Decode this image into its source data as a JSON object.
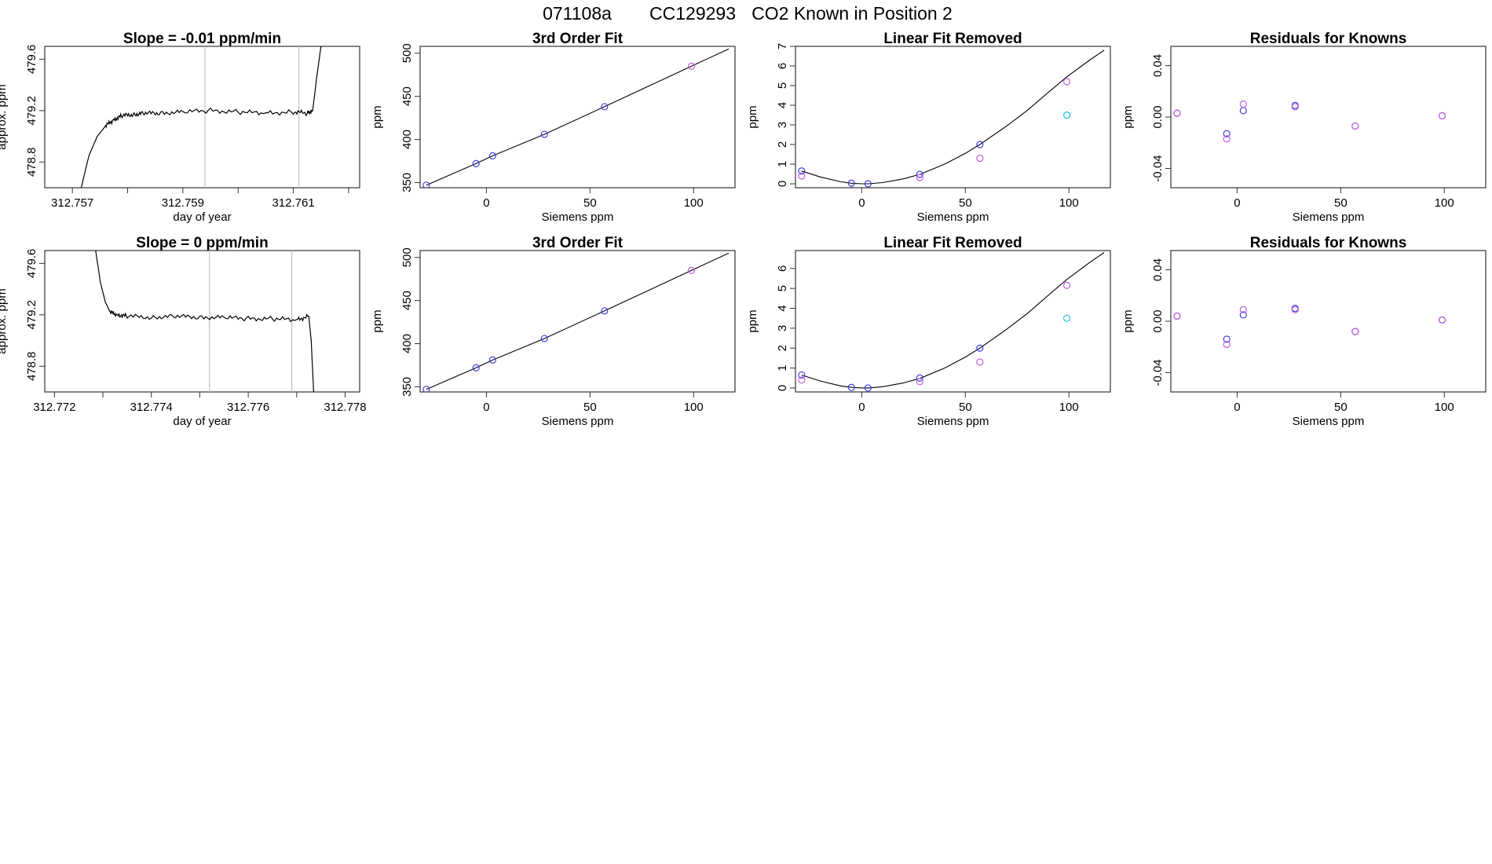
{
  "figure": {
    "run_id": "071108a",
    "cylinder_id": "CC129293",
    "title_text": "CO2 Known in Position  2"
  },
  "colors": {
    "known_points": "#4040e0",
    "alt_points": "#c060e0",
    "outlier_point": "#20c0e0",
    "fit_line": "#000000",
    "marker_lines": "#c0c0c0"
  },
  "chart_data": [
    {
      "type": "line",
      "title": "Slope =  -0.01  ppm/min",
      "xlabel": "day of year",
      "ylabel": "approx. ppm",
      "xlim": [
        312.7565,
        312.7622
      ],
      "ylim": [
        478.6,
        479.7
      ],
      "xticks": [
        "312.757",
        "312.758",
        "312.759",
        "312.760",
        "312.761",
        "312.762"
      ],
      "xtick_labels_shown": [
        "312.757",
        "312.759",
        "312.761"
      ],
      "yticks": [
        "478.8",
        "479.2",
        "479.6"
      ],
      "vlines": [
        312.7594,
        312.7611
      ],
      "series": [
        {
          "name": "trace",
          "x": [
            312.75716,
            312.7573,
            312.75745,
            312.7576,
            312.75775,
            312.7579,
            312.7581,
            312.7583,
            312.7586,
            312.759,
            312.7595,
            312.76,
            312.7605,
            312.761,
            312.76125,
            312.76135,
            312.76142,
            312.7615
          ],
          "y": [
            478.6,
            478.85,
            479.0,
            479.08,
            479.13,
            479.16,
            479.17,
            479.18,
            479.18,
            479.19,
            479.2,
            479.19,
            479.18,
            479.19,
            479.18,
            479.2,
            479.45,
            479.7
          ]
        }
      ]
    },
    {
      "type": "scatter",
      "title": "3rd Order Fit",
      "xlabel": "Siemens ppm",
      "ylabel": "ppm",
      "xlim": [
        -32,
        120
      ],
      "ylim": [
        344,
        508
      ],
      "xticks": [
        "0",
        "50",
        "100"
      ],
      "yticks": [
        "350",
        "400",
        "450",
        "500"
      ],
      "fit_curve": {
        "x": [
          -29,
          -5,
          3,
          28,
          57,
          99,
          117
        ],
        "y": [
          347,
          372,
          381,
          406,
          438,
          485,
          505
        ]
      },
      "series": [
        {
          "name": "knowns",
          "color_key": "known_points",
          "x": [
            -29,
            -5,
            3,
            28,
            57
          ],
          "y": [
            347,
            372,
            381,
            406,
            438
          ]
        },
        {
          "name": "other",
          "color_key": "alt_points",
          "x": [
            99
          ],
          "y": [
            485
          ]
        }
      ]
    },
    {
      "type": "scatter",
      "title": "Linear Fit Removed",
      "xlabel": "Siemens ppm",
      "ylabel": "ppm",
      "xlim": [
        -32,
        120
      ],
      "ylim": [
        -0.2,
        7
      ],
      "xticks": [
        "0",
        "50",
        "100"
      ],
      "yticks": [
        "0",
        "1",
        "2",
        "3",
        "4",
        "5",
        "6",
        "7"
      ],
      "fit_curve": {
        "x": [
          -29,
          -20,
          -10,
          -5,
          0,
          3,
          10,
          20,
          28,
          40,
          50,
          57,
          70,
          80,
          90,
          99,
          110,
          117
        ],
        "y": [
          0.65,
          0.35,
          0.1,
          0.03,
          0.0,
          0.0,
          0.06,
          0.25,
          0.48,
          1.0,
          1.55,
          2.0,
          2.95,
          3.75,
          4.65,
          5.45,
          6.3,
          6.8
        ]
      },
      "series": [
        {
          "name": "knowns",
          "color_key": "known_points",
          "x": [
            -29,
            -5,
            3,
            28,
            57
          ],
          "y": [
            0.65,
            0.03,
            0.0,
            0.48,
            2.0
          ]
        },
        {
          "name": "other",
          "color_key": "alt_points",
          "x": [
            -29,
            28,
            57,
            99
          ],
          "y": [
            0.4,
            0.32,
            1.3,
            5.2
          ]
        },
        {
          "name": "outlier",
          "color_key": "outlier_point",
          "x": [
            99
          ],
          "y": [
            3.5
          ]
        }
      ]
    },
    {
      "type": "scatter",
      "title": "Residuals for Knowns",
      "xlabel": "Siemens ppm",
      "ylabel": "ppm",
      "xlim": [
        -32,
        120
      ],
      "ylim": [
        -0.055,
        0.055
      ],
      "xticks": [
        "0",
        "50",
        "100"
      ],
      "yticks": [
        "-0.04",
        "0.00",
        "0.04"
      ],
      "series": [
        {
          "name": "knowns",
          "color_key": "known_points",
          "x": [
            -29,
            -5,
            3,
            28,
            57,
            99
          ],
          "y": [
            0.003,
            -0.013,
            0.005,
            0.009,
            -0.007,
            0.001
          ]
        },
        {
          "name": "other",
          "color_key": "alt_points",
          "x": [
            -29,
            -5,
            3,
            28,
            57,
            99
          ],
          "y": [
            0.003,
            -0.017,
            0.01,
            0.008,
            -0.007,
            0.001
          ]
        }
      ]
    },
    {
      "type": "line",
      "title": "Slope =  0  ppm/min",
      "xlabel": "day of year",
      "ylabel": "approx. ppm",
      "xlim": [
        312.7718,
        312.7783
      ],
      "ylim": [
        478.6,
        479.7
      ],
      "xticks": [
        "312.772",
        "312.773",
        "312.774",
        "312.775",
        "312.776",
        "312.777",
        "312.778"
      ],
      "xtick_labels_shown": [
        "312.772",
        "312.774",
        "312.776",
        "312.778"
      ],
      "yticks": [
        "478.8",
        "479.2",
        "479.6"
      ],
      "vlines": [
        312.7752,
        312.7769
      ],
      "series": [
        {
          "name": "trace",
          "x": [
            312.77285,
            312.77295,
            312.77305,
            312.77315,
            312.7733,
            312.7735,
            312.774,
            312.7745,
            312.775,
            312.7755,
            312.776,
            312.7765,
            312.777,
            312.77725,
            312.7773,
            312.77735
          ],
          "y": [
            479.7,
            479.45,
            479.3,
            479.22,
            479.2,
            479.19,
            479.18,
            479.19,
            479.18,
            479.18,
            479.17,
            479.17,
            479.16,
            479.19,
            479.0,
            478.6
          ]
        }
      ]
    },
    {
      "type": "scatter",
      "title": "3rd Order Fit",
      "xlabel": "Siemens ppm",
      "ylabel": "ppm",
      "xlim": [
        -32,
        120
      ],
      "ylim": [
        344,
        508
      ],
      "xticks": [
        "0",
        "50",
        "100"
      ],
      "yticks": [
        "350",
        "400",
        "450",
        "500"
      ],
      "fit_curve": {
        "x": [
          -29,
          -5,
          3,
          28,
          57,
          99,
          117
        ],
        "y": [
          347,
          372,
          381,
          406,
          438,
          485,
          505
        ]
      },
      "series": [
        {
          "name": "knowns",
          "color_key": "known_points",
          "x": [
            -29,
            -5,
            3,
            28,
            57
          ],
          "y": [
            347,
            372,
            381,
            406,
            438
          ]
        },
        {
          "name": "other",
          "color_key": "alt_points",
          "x": [
            99
          ],
          "y": [
            485
          ]
        }
      ]
    },
    {
      "type": "scatter",
      "title": "Linear Fit Removed",
      "xlabel": "Siemens ppm",
      "ylabel": "ppm",
      "xlim": [
        -32,
        120
      ],
      "ylim": [
        -0.2,
        6.9
      ],
      "xticks": [
        "0",
        "50",
        "100"
      ],
      "yticks": [
        "0",
        "1",
        "2",
        "3",
        "4",
        "5",
        "6"
      ],
      "fit_curve": {
        "x": [
          -29,
          -20,
          -10,
          -5,
          0,
          3,
          10,
          20,
          28,
          40,
          50,
          57,
          70,
          80,
          90,
          99,
          110,
          117
        ],
        "y": [
          0.65,
          0.35,
          0.1,
          0.03,
          0.0,
          0.0,
          0.06,
          0.25,
          0.48,
          1.0,
          1.55,
          2.0,
          2.95,
          3.75,
          4.65,
          5.45,
          6.3,
          6.8
        ]
      },
      "series": [
        {
          "name": "knowns",
          "color_key": "known_points",
          "x": [
            -29,
            -5,
            3,
            28,
            57
          ],
          "y": [
            0.65,
            0.03,
            0.0,
            0.5,
            2.0
          ]
        },
        {
          "name": "other",
          "color_key": "alt_points",
          "x": [
            -29,
            28,
            57,
            99
          ],
          "y": [
            0.4,
            0.32,
            1.3,
            5.15
          ]
        },
        {
          "name": "outlier",
          "color_key": "outlier_point",
          "x": [
            99
          ],
          "y": [
            3.5
          ]
        }
      ]
    },
    {
      "type": "scatter",
      "title": "Residuals for Knowns",
      "xlabel": "Siemens ppm",
      "ylabel": "ppm",
      "xlim": [
        -32,
        120
      ],
      "ylim": [
        -0.055,
        0.055
      ],
      "xticks": [
        "0",
        "50",
        "100"
      ],
      "yticks": [
        "-0.04",
        "0.00",
        "0.04"
      ],
      "series": [
        {
          "name": "knowns",
          "color_key": "known_points",
          "x": [
            -29,
            -5,
            3,
            28,
            57,
            99
          ],
          "y": [
            0.004,
            -0.014,
            0.005,
            0.01,
            -0.008,
            0.001
          ]
        },
        {
          "name": "other",
          "color_key": "alt_points",
          "x": [
            -29,
            -5,
            3,
            28,
            57,
            99
          ],
          "y": [
            0.004,
            -0.018,
            0.009,
            0.009,
            -0.008,
            0.001
          ]
        }
      ]
    }
  ]
}
